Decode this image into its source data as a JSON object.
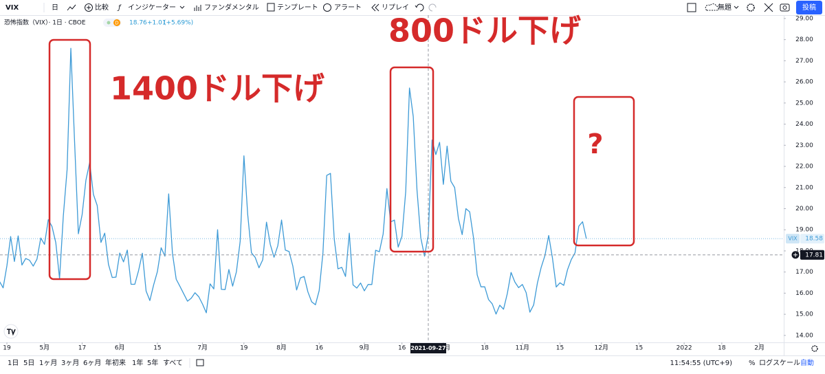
{
  "toolbar": {
    "symbol": "VIX",
    "interval": "日",
    "compare": "比較",
    "indicators": "インジケーター",
    "fundamentals": "ファンダメンタル",
    "templates": "テンプレート",
    "alert": "アラート",
    "replay": "リプレイ",
    "layout_name": "無題",
    "publish": "投稿"
  },
  "legend": {
    "title": "恐怖指数（VIX）· 1日 · CBOE",
    "badge": "D",
    "last": "18.76",
    "change": "+1.01",
    "change_percent": "(+5.69%)"
  },
  "bottom_bar": {
    "ranges": [
      "1日",
      "5日",
      "1ヶ月",
      "3ヶ月",
      "6ヶ月",
      "年初来",
      "1年",
      "5年",
      "すべて"
    ],
    "time": "11:54:55 (UTC+9)",
    "percent": "%",
    "log_scale": "ログスケール",
    "auto": "自動"
  },
  "chart_data": {
    "type": "line",
    "series": [
      {
        "name": "VIX",
        "color": "#3d9ad6",
        "values": [
          16.57,
          16.25,
          17.29,
          18.68,
          17.5,
          18.71,
          17.33,
          17.64,
          17.56,
          17.28,
          17.61,
          18.61,
          18.31,
          19.48,
          19.15,
          18.39,
          16.69,
          19.66,
          21.84,
          27.59,
          23.13,
          18.81,
          19.72,
          21.34,
          22.18,
          20.67,
          20.15,
          18.4,
          18.84,
          17.36,
          16.74,
          16.76,
          17.9,
          17.48,
          18.04,
          16.42,
          16.42,
          17.07,
          17.89,
          16.1,
          15.65,
          16.39,
          17.02,
          18.15,
          17.75,
          20.7,
          17.89,
          16.66,
          16.32,
          15.97,
          15.62,
          15.76,
          16.02,
          15.83,
          15.48,
          15.07,
          16.44,
          16.2,
          19.0,
          16.18,
          16.17,
          17.12,
          16.33,
          17.01,
          18.45,
          22.5,
          19.73,
          17.91,
          17.69,
          17.2,
          17.58,
          19.36,
          18.31,
          17.7,
          18.24,
          19.46,
          18.04,
          17.97,
          17.28,
          16.15,
          16.72,
          16.79,
          16.06,
          15.59,
          15.45,
          16.12,
          17.91,
          21.57,
          21.67,
          18.56,
          17.15,
          17.22,
          16.79,
          18.84,
          16.39,
          16.24,
          16.48,
          16.11,
          16.41,
          16.41,
          18.03,
          17.96,
          18.8,
          20.95,
          19.37,
          19.46,
          18.18,
          18.69,
          20.81,
          25.71,
          24.36,
          20.87,
          18.63,
          17.75,
          18.76,
          23.25,
          22.56,
          23.14,
          21.15,
          22.96,
          21.3,
          21.0,
          19.54,
          18.77,
          20.0,
          19.85,
          18.64,
          16.86,
          16.3,
          16.3,
          15.7,
          15.49,
          15.01,
          15.43,
          15.24,
          15.98,
          16.98,
          16.53,
          16.26,
          16.41,
          16.03,
          15.1,
          15.44,
          16.48,
          17.22,
          17.78,
          18.73,
          17.66,
          16.29,
          16.49,
          16.37,
          17.11,
          17.59,
          17.91,
          19.17,
          19.38,
          18.58
        ]
      }
    ],
    "xlim": [
      0.17,
      208.47
    ],
    "xticks": [
      {
        "value": 2,
        "label": "19"
      },
      {
        "value": 12,
        "label": "5月"
      },
      {
        "value": 22,
        "label": "17"
      },
      {
        "value": 32,
        "label": "6月"
      },
      {
        "value": 42,
        "label": "15"
      },
      {
        "value": 54,
        "label": "7月"
      },
      {
        "value": 65,
        "label": "19"
      },
      {
        "value": 75,
        "label": "8月"
      },
      {
        "value": 85,
        "label": "16"
      },
      {
        "value": 97,
        "label": "9月"
      },
      {
        "value": 107,
        "label": "16"
      },
      {
        "value": 118,
        "label": "10月"
      },
      {
        "value": 129,
        "label": "18"
      },
      {
        "value": 139,
        "label": "11月"
      },
      {
        "value": 149,
        "label": "15"
      },
      {
        "value": 160,
        "label": "12月"
      },
      {
        "value": 170,
        "label": "15"
      },
      {
        "value": 182,
        "label": "2022"
      },
      {
        "value": 192,
        "label": "18"
      },
      {
        "value": 202,
        "label": "2月"
      }
    ],
    "ylim": [
      13.67,
      29.16
    ],
    "yticks": [
      {
        "value": 14,
        "label": "14.00"
      },
      {
        "value": 15,
        "label": "15.00"
      },
      {
        "value": 16,
        "label": "16.00"
      },
      {
        "value": 17,
        "label": "17.00"
      },
      {
        "value": 18,
        "label": "18.00"
      },
      {
        "value": 19,
        "label": "19.00"
      },
      {
        "value": 20,
        "label": "20.00"
      },
      {
        "value": 21,
        "label": "21.00"
      },
      {
        "value": 22,
        "label": "22.00"
      },
      {
        "value": 23,
        "label": "23.00"
      },
      {
        "value": 24,
        "label": "24.00"
      },
      {
        "value": 25,
        "label": "25.00"
      },
      {
        "value": 26,
        "label": "26.00"
      },
      {
        "value": 27,
        "label": "27.00"
      },
      {
        "value": 28,
        "label": "28.00"
      },
      {
        "value": 29,
        "label": "29.00"
      }
    ],
    "grid": false,
    "crosshair": {
      "x": {
        "value": 114,
        "label": "2021-09-27"
      },
      "y": 17.81
    },
    "annotations": [
      "1400ドル下げ",
      "800ドル下げ",
      "?"
    ]
  }
}
